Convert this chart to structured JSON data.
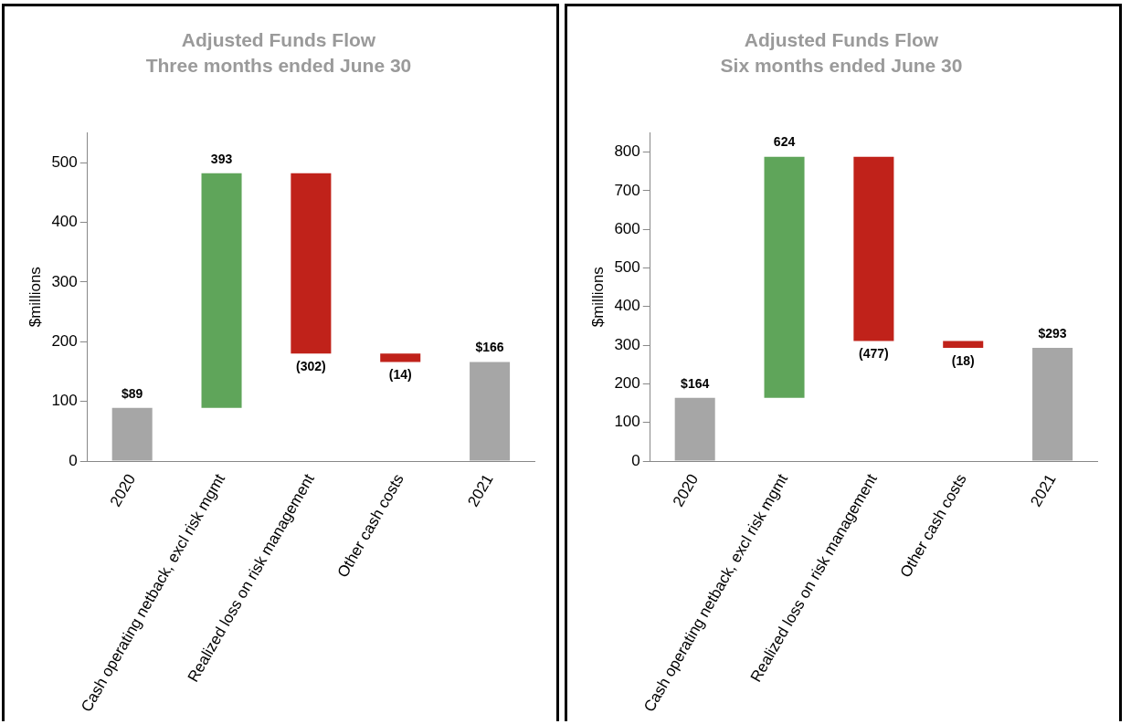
{
  "chart_data": [
    {
      "type": "bar",
      "title": "Adjusted Funds Flow",
      "subtitle": "Three months ended June 30",
      "ylabel": "$millions",
      "categories": [
        "2020",
        "Cash operating netback, excl risk mgmt",
        "Realized loss on risk management",
        "Other cash costs",
        "2021"
      ],
      "values": [
        89,
        393,
        -302,
        -14,
        166
      ],
      "base": [
        0,
        89,
        482,
        180,
        0
      ],
      "colors": [
        "#a6a6a6",
        "#5fa55a",
        "#c0221a",
        "#c0221a",
        "#a6a6a6"
      ],
      "value_labels": [
        "$89",
        "393",
        "(302)",
        "(14)",
        "$166"
      ],
      "ylim": [
        0,
        550
      ],
      "yticks": [
        0,
        100,
        200,
        300,
        400,
        500
      ],
      "grid": false,
      "legend": false
    },
    {
      "type": "bar",
      "title": "Adjusted Funds Flow",
      "subtitle": "Six months ended June 30",
      "ylabel": "$millions",
      "categories": [
        "2020",
        "Cash operating netback, excl risk mgmt",
        "Realized loss on risk management",
        "Other cash costs",
        "2021"
      ],
      "values": [
        164,
        624,
        -477,
        -18,
        293
      ],
      "base": [
        0,
        164,
        788,
        311,
        0
      ],
      "colors": [
        "#a6a6a6",
        "#5fa55a",
        "#c0221a",
        "#c0221a",
        "#a6a6a6"
      ],
      "value_labels": [
        "$164",
        "624",
        "(477)",
        "(18)",
        "$293"
      ],
      "ylim": [
        0,
        850
      ],
      "yticks": [
        0,
        100,
        200,
        300,
        400,
        500,
        600,
        700,
        800
      ],
      "grid": false,
      "legend": false
    }
  ]
}
